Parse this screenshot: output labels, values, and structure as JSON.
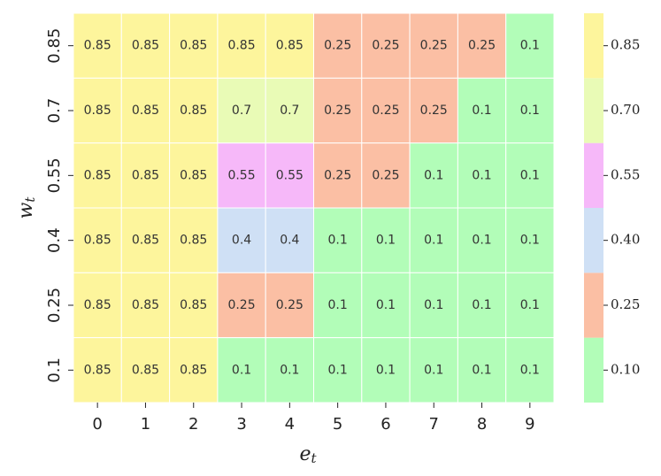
{
  "chart_data": {
    "type": "heatmap",
    "x_label": {
      "base": "e",
      "sub": "t"
    },
    "y_label": {
      "base": "w",
      "sub": "t"
    },
    "x_categories": [
      "0",
      "1",
      "2",
      "3",
      "4",
      "5",
      "6",
      "7",
      "8",
      "9"
    ],
    "y_categories": [
      "0.85",
      "0.7",
      "0.55",
      "0.4",
      "0.25",
      "0.1"
    ],
    "values": [
      [
        0.85,
        0.85,
        0.85,
        0.85,
        0.85,
        0.25,
        0.25,
        0.25,
        0.25,
        0.1
      ],
      [
        0.85,
        0.85,
        0.85,
        0.7,
        0.7,
        0.25,
        0.25,
        0.25,
        0.1,
        0.1
      ],
      [
        0.85,
        0.85,
        0.85,
        0.55,
        0.55,
        0.25,
        0.25,
        0.1,
        0.1,
        0.1
      ],
      [
        0.85,
        0.85,
        0.85,
        0.4,
        0.4,
        0.1,
        0.1,
        0.1,
        0.1,
        0.1
      ],
      [
        0.85,
        0.85,
        0.85,
        0.25,
        0.25,
        0.1,
        0.1,
        0.1,
        0.1,
        0.1
      ],
      [
        0.85,
        0.85,
        0.85,
        0.1,
        0.1,
        0.1,
        0.1,
        0.1,
        0.1,
        0.1
      ]
    ],
    "colorbar": {
      "colors": [
        "#b2fdb8",
        "#fbbfa4",
        "#cfe0f5",
        "#f6b8f9",
        "#e9fbb6",
        "#fdf59c"
      ],
      "lim": [
        0.025,
        0.925
      ],
      "ticks": [
        {
          "value": 0.1,
          "label": "0.10"
        },
        0.25,
        {
          "value": 0.4,
          "label": "0.40"
        },
        0.55,
        {
          "value": 0.7,
          "label": "0.70"
        },
        0.85
      ]
    }
  }
}
